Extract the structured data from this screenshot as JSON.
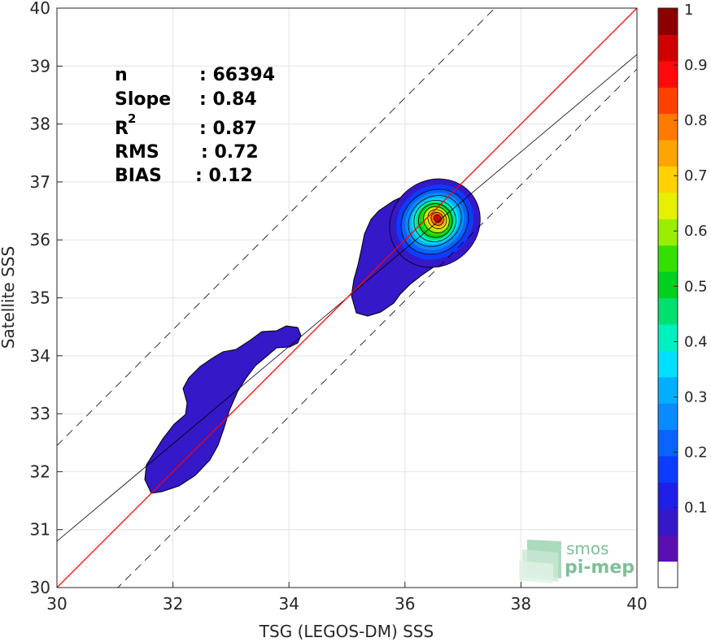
{
  "chart_data": {
    "type": "contour-scatter",
    "xlabel": "TSG (LEGOS-DM) SSS",
    "ylabel": "Satellite SSS",
    "xlim": [
      30,
      40
    ],
    "ylim": [
      30,
      40
    ],
    "xticks": [
      "30",
      "32",
      "34",
      "36",
      "38",
      "40"
    ],
    "yticks": [
      "30",
      "31",
      "32",
      "33",
      "34",
      "35",
      "36",
      "37",
      "38",
      "39",
      "40"
    ],
    "grid": true,
    "stats": [
      {
        "label": "n",
        "value": ": 66394"
      },
      {
        "label": "Slope",
        "value": ": 0.84"
      },
      {
        "label": "R",
        "sup": "2",
        "value": ": 0.87"
      },
      {
        "label": "RMS",
        "value": ": 0.72"
      },
      {
        "label": "BIAS",
        "value": ": 0.12"
      }
    ],
    "lines": {
      "one_to_one": {
        "slope": 1,
        "intercept": 0,
        "color": "#ff0000"
      },
      "fit": {
        "slope": 0.84,
        "intercept": 5.6,
        "color": "#000000"
      },
      "upper_bound": {
        "slope": 1,
        "intercept": 2.45,
        "style": "dashed"
      },
      "lower_bound": {
        "slope": 1,
        "intercept": -1.05,
        "style": "dashed"
      }
    },
    "density_peak": {
      "x": 36.38,
      "y": 36.32
    },
    "colorbar": {
      "ticks": [
        "0.1",
        "0.2",
        "0.3",
        "0.4",
        "0.5",
        "0.6",
        "0.7",
        "0.8",
        "0.9",
        "1"
      ],
      "levels": [
        0.05,
        0.1,
        0.15,
        0.2,
        0.25,
        0.3,
        0.35,
        0.4,
        0.45,
        0.5,
        0.55,
        0.6,
        0.65,
        0.7,
        0.75,
        0.8,
        0.85,
        0.9,
        0.95,
        1.0
      ],
      "colors": [
        "#ffffff",
        "#5a10b0",
        "#3518c8",
        "#1f1fe6",
        "#0b3cff",
        "#0a63ff",
        "#0a8aff",
        "#00b0ff",
        "#00dfff",
        "#00f0c0",
        "#00e070",
        "#00d020",
        "#33e000",
        "#99ee00",
        "#e6f000",
        "#ffd200",
        "#ffa500",
        "#ff7a00",
        "#ff4000",
        "#ff0a0a",
        "#d00000",
        "#8c0000"
      ]
    }
  },
  "logo": {
    "line1": "smos",
    "line2": "pi-mep"
  }
}
